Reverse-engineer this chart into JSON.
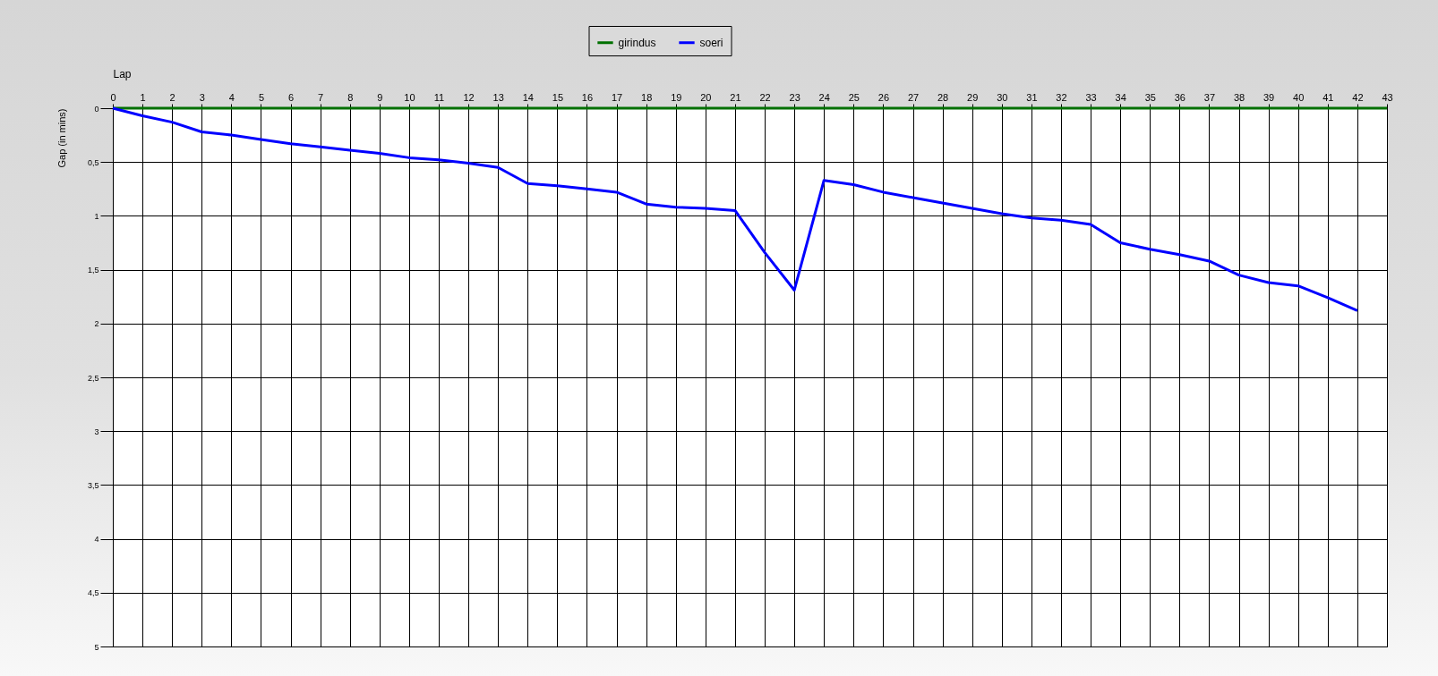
{
  "chart_data": {
    "type": "line",
    "xlabel": "Lap",
    "ylabel": "Gap (in mins)",
    "x": [
      0,
      1,
      2,
      3,
      4,
      5,
      6,
      7,
      8,
      9,
      10,
      11,
      12,
      13,
      14,
      15,
      16,
      17,
      18,
      19,
      20,
      21,
      22,
      23,
      24,
      25,
      26,
      27,
      28,
      29,
      30,
      31,
      32,
      33,
      34,
      35,
      36,
      37,
      38,
      39,
      40,
      41,
      42,
      43
    ],
    "series": [
      {
        "name": "girindus",
        "color": "#007000",
        "values": [
          0,
          0,
          0,
          0,
          0,
          0,
          0,
          0,
          0,
          0,
          0,
          0,
          0,
          0,
          0,
          0,
          0,
          0,
          0,
          0,
          0,
          0,
          0,
          0,
          0,
          0,
          0,
          0,
          0,
          0,
          0,
          0,
          0,
          0,
          0,
          0,
          0,
          0,
          0,
          0,
          0,
          0,
          0,
          0
        ]
      },
      {
        "name": "soeri",
        "color": "#0000ff",
        "values": [
          0,
          0.07,
          0.13,
          0.22,
          0.25,
          0.29,
          0.33,
          0.36,
          0.39,
          0.42,
          0.46,
          0.48,
          0.51,
          0.55,
          0.7,
          0.72,
          0.75,
          0.78,
          0.89,
          0.92,
          0.93,
          0.95,
          1.34,
          1.69,
          0.67,
          0.71,
          0.78,
          0.83,
          0.88,
          0.93,
          0.98,
          1.02,
          1.04,
          1.08,
          1.25,
          1.31,
          1.36,
          1.42,
          1.55,
          1.62,
          1.65,
          1.76,
          1.88,
          null
        ]
      }
    ],
    "xlim": [
      0,
      43
    ],
    "xticks": [
      0,
      1,
      2,
      3,
      4,
      5,
      6,
      7,
      8,
      9,
      10,
      11,
      12,
      13,
      14,
      15,
      16,
      17,
      18,
      19,
      20,
      21,
      22,
      23,
      24,
      25,
      26,
      27,
      28,
      29,
      30,
      31,
      32,
      33,
      34,
      35,
      36,
      37,
      38,
      39,
      40,
      41,
      42,
      43
    ],
    "ylim": [
      5,
      0
    ],
    "yticks": [
      0,
      {
        "value": 0.5,
        "label": "0,5"
      },
      1,
      {
        "value": 1.5,
        "label": "1,5"
      },
      2,
      {
        "value": 2.5,
        "label": "2,5"
      },
      3,
      {
        "value": 3.5,
        "label": "3,5"
      },
      4,
      {
        "value": 4.5,
        "label": "4,5"
      },
      5
    ],
    "grid": true,
    "legend": "top",
    "marker": "none",
    "line_style": "solid"
  }
}
